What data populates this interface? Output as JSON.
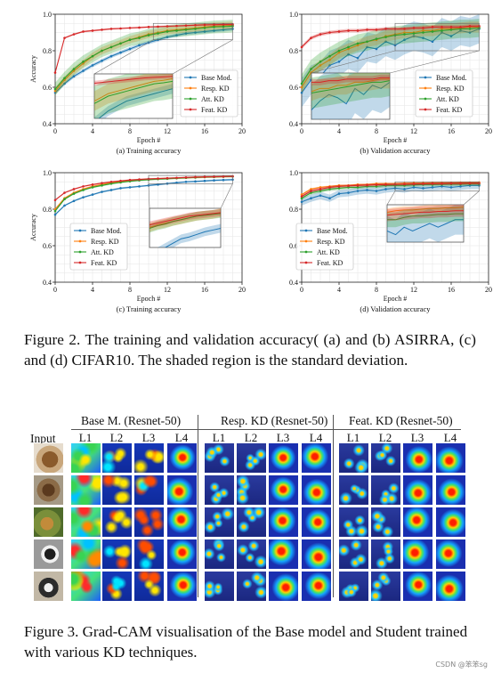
{
  "colors": {
    "base": "#1f77b4",
    "resp": "#ff7f0e",
    "att": "#2ca02c",
    "feat": "#d62728"
  },
  "chart_data": [
    {
      "id": "a",
      "type": "line",
      "caption": "(a) Training accuracy",
      "xlabel": "Epoch #",
      "ylabel": "Accuracy",
      "xlim": [
        0,
        20
      ],
      "ylim": [
        0.4,
        1.0
      ],
      "xticks": [
        "0",
        "4",
        "8",
        "12",
        "16",
        "20"
      ],
      "yticks": [
        "0.4",
        "0.6",
        "0.8",
        "1.0"
      ],
      "grid": true,
      "legend_position": "lower-right",
      "x": [
        0,
        1,
        2,
        3,
        4,
        5,
        6,
        7,
        8,
        9,
        10,
        11,
        12,
        13,
        14,
        15,
        16,
        17,
        18,
        19
      ],
      "series": [
        {
          "name": "Base Mod.",
          "key": "base",
          "values": [
            0.57,
            0.62,
            0.66,
            0.69,
            0.72,
            0.745,
            0.77,
            0.79,
            0.81,
            0.83,
            0.845,
            0.86,
            0.875,
            0.885,
            0.895,
            0.9,
            0.905,
            0.91,
            0.915,
            0.92
          ],
          "band": 0.01
        },
        {
          "name": "Resp. KD",
          "key": "resp",
          "values": [
            0.58,
            0.64,
            0.69,
            0.73,
            0.77,
            0.8,
            0.82,
            0.84,
            0.86,
            0.875,
            0.89,
            0.9,
            0.91,
            0.915,
            0.92,
            0.925,
            0.93,
            0.935,
            0.937,
            0.94
          ],
          "band": 0.02
        },
        {
          "name": "Att. KD",
          "key": "att",
          "values": [
            0.59,
            0.65,
            0.7,
            0.74,
            0.77,
            0.8,
            0.82,
            0.84,
            0.86,
            0.87,
            0.885,
            0.895,
            0.905,
            0.91,
            0.915,
            0.92,
            0.925,
            0.93,
            0.932,
            0.935
          ],
          "band": 0.035
        },
        {
          "name": "Feat. KD",
          "key": "feat",
          "values": [
            0.68,
            0.87,
            0.89,
            0.905,
            0.91,
            0.915,
            0.92,
            0.922,
            0.925,
            0.927,
            0.93,
            0.932,
            0.934,
            0.936,
            0.938,
            0.94,
            0.942,
            0.943,
            0.944,
            0.945
          ],
          "band": 0.005
        }
      ]
    },
    {
      "id": "b",
      "type": "line",
      "caption": "(b) Validation accuracy",
      "xlabel": "Epoch #",
      "ylabel": "",
      "xlim": [
        0,
        20
      ],
      "ylim": [
        0.4,
        1.0
      ],
      "xticks": [
        "0",
        "4",
        "8",
        "12",
        "16",
        "20"
      ],
      "yticks": [
        "0.4",
        "0.6",
        "0.8",
        "1.0"
      ],
      "grid": true,
      "legend_position": "lower-right",
      "x": [
        0,
        1,
        2,
        3,
        4,
        5,
        6,
        7,
        8,
        9,
        10,
        11,
        12,
        13,
        14,
        15,
        16,
        17,
        18,
        19
      ],
      "series": [
        {
          "name": "Base Mod.",
          "key": "base",
          "values": [
            0.57,
            0.64,
            0.66,
            0.72,
            0.74,
            0.78,
            0.76,
            0.82,
            0.81,
            0.85,
            0.83,
            0.86,
            0.88,
            0.87,
            0.85,
            0.9,
            0.88,
            0.91,
            0.9,
            0.92
          ],
          "band": 0.08
        },
        {
          "name": "Resp. KD",
          "key": "resp",
          "values": [
            0.6,
            0.68,
            0.72,
            0.75,
            0.79,
            0.81,
            0.83,
            0.85,
            0.86,
            0.88,
            0.89,
            0.9,
            0.9,
            0.91,
            0.91,
            0.92,
            0.92,
            0.925,
            0.93,
            0.93
          ],
          "band": 0.03
        },
        {
          "name": "Att. KD",
          "key": "att",
          "values": [
            0.62,
            0.7,
            0.74,
            0.77,
            0.8,
            0.82,
            0.84,
            0.85,
            0.865,
            0.875,
            0.885,
            0.89,
            0.895,
            0.9,
            0.905,
            0.91,
            0.915,
            0.92,
            0.92,
            0.925
          ],
          "band": 0.05
        },
        {
          "name": "Feat. KD",
          "key": "feat",
          "values": [
            0.82,
            0.87,
            0.89,
            0.9,
            0.905,
            0.91,
            0.91,
            0.915,
            0.915,
            0.92,
            0.92,
            0.92,
            0.925,
            0.925,
            0.93,
            0.93,
            0.93,
            0.93,
            0.935,
            0.935
          ],
          "band": 0.01
        }
      ]
    },
    {
      "id": "c",
      "type": "line",
      "caption": "(c) Training accuracy",
      "xlabel": "Epoch #",
      "ylabel": "Accuracy",
      "xlim": [
        0,
        20
      ],
      "ylim": [
        0.4,
        1.0
      ],
      "xticks": [
        "0",
        "4",
        "8",
        "12",
        "16",
        "20"
      ],
      "yticks": [
        "0.4",
        "0.6",
        "0.8",
        "1.0"
      ],
      "grid": true,
      "legend_position": "lower-left",
      "x": [
        0,
        1,
        2,
        3,
        4,
        5,
        6,
        7,
        8,
        9,
        10,
        11,
        12,
        13,
        14,
        15,
        16,
        17,
        18,
        19
      ],
      "series": [
        {
          "name": "Base Mod.",
          "key": "base",
          "values": [
            0.77,
            0.82,
            0.845,
            0.865,
            0.88,
            0.895,
            0.905,
            0.915,
            0.92,
            0.925,
            0.93,
            0.935,
            0.94,
            0.945,
            0.95,
            0.952,
            0.955,
            0.958,
            0.96,
            0.962
          ],
          "band": 0.005
        },
        {
          "name": "Resp. KD",
          "key": "resp",
          "values": [
            0.8,
            0.86,
            0.89,
            0.91,
            0.925,
            0.935,
            0.945,
            0.95,
            0.955,
            0.96,
            0.963,
            0.966,
            0.968,
            0.97,
            0.972,
            0.974,
            0.976,
            0.977,
            0.978,
            0.98
          ],
          "band": 0.005
        },
        {
          "name": "Att. KD",
          "key": "att",
          "values": [
            0.79,
            0.855,
            0.885,
            0.905,
            0.92,
            0.93,
            0.94,
            0.947,
            0.953,
            0.958,
            0.962,
            0.965,
            0.967,
            0.97,
            0.972,
            0.974,
            0.976,
            0.977,
            0.978,
            0.979
          ],
          "band": 0.005
        },
        {
          "name": "Feat. KD",
          "key": "feat",
          "values": [
            0.85,
            0.89,
            0.91,
            0.925,
            0.935,
            0.943,
            0.95,
            0.955,
            0.96,
            0.963,
            0.966,
            0.968,
            0.97,
            0.972,
            0.974,
            0.976,
            0.977,
            0.978,
            0.979,
            0.98
          ],
          "band": 0.004
        }
      ]
    },
    {
      "id": "d",
      "type": "line",
      "caption": "(d) Validation accuracy",
      "xlabel": "Epoch #",
      "ylabel": "",
      "xlim": [
        0,
        20
      ],
      "ylim": [
        0.4,
        1.0
      ],
      "xticks": [
        "0",
        "4",
        "8",
        "12",
        "16",
        "20"
      ],
      "yticks": [
        "0.4",
        "0.6",
        "0.8",
        "1.0"
      ],
      "grid": true,
      "legend_position": "lower-left",
      "x": [
        0,
        1,
        2,
        3,
        4,
        5,
        6,
        7,
        8,
        9,
        10,
        11,
        12,
        13,
        14,
        15,
        16,
        17,
        18,
        19
      ],
      "series": [
        {
          "name": "Base Mod.",
          "key": "base",
          "values": [
            0.84,
            0.86,
            0.875,
            0.86,
            0.885,
            0.89,
            0.9,
            0.905,
            0.9,
            0.91,
            0.915,
            0.91,
            0.92,
            0.915,
            0.92,
            0.925,
            0.92,
            0.925,
            0.93,
            0.93
          ],
          "band": 0.02
        },
        {
          "name": "Resp. KD",
          "key": "resp",
          "values": [
            0.88,
            0.91,
            0.92,
            0.925,
            0.93,
            0.93,
            0.935,
            0.935,
            0.94,
            0.94,
            0.94,
            0.942,
            0.943,
            0.943,
            0.944,
            0.945,
            0.945,
            0.946,
            0.946,
            0.947
          ],
          "band": 0.005
        },
        {
          "name": "Att. KD",
          "key": "att",
          "values": [
            0.86,
            0.89,
            0.9,
            0.91,
            0.915,
            0.92,
            0.92,
            0.925,
            0.925,
            0.93,
            0.93,
            0.93,
            0.933,
            0.935,
            0.935,
            0.936,
            0.937,
            0.937,
            0.938,
            0.938
          ],
          "band": 0.01
        },
        {
          "name": "Feat. KD",
          "key": "feat",
          "values": [
            0.87,
            0.9,
            0.91,
            0.92,
            0.925,
            0.928,
            0.93,
            0.932,
            0.934,
            0.935,
            0.936,
            0.937,
            0.938,
            0.939,
            0.94,
            0.94,
            0.941,
            0.941,
            0.942,
            0.942
          ],
          "band": 0.008
        }
      ]
    }
  ],
  "figure2": {
    "caption": "Figure 2.  The training and validation accuracy( (a) and (b) ASIRRA, (c) and (d) CIFAR10. The shaded region is the standard deviation."
  },
  "figure3": {
    "input_label": "Input",
    "groups": [
      {
        "title": "Base  M. (Resnet-50)",
        "layers": [
          "L1",
          "L2",
          "L3",
          "L4"
        ]
      },
      {
        "title": "Resp. KD (Resnet-50)",
        "layers": [
          "L1",
          "L2",
          "L3",
          "L4"
        ]
      },
      {
        "title": "Feat. KD (Resnet-50)",
        "layers": [
          "L1",
          "L2",
          "L3",
          "L4"
        ]
      }
    ],
    "caption": "Figure 3. Grad-CAM visualisation of the Base model and Student trained with various KD techniques."
  },
  "watermark": "CSDN @笨笨sg"
}
